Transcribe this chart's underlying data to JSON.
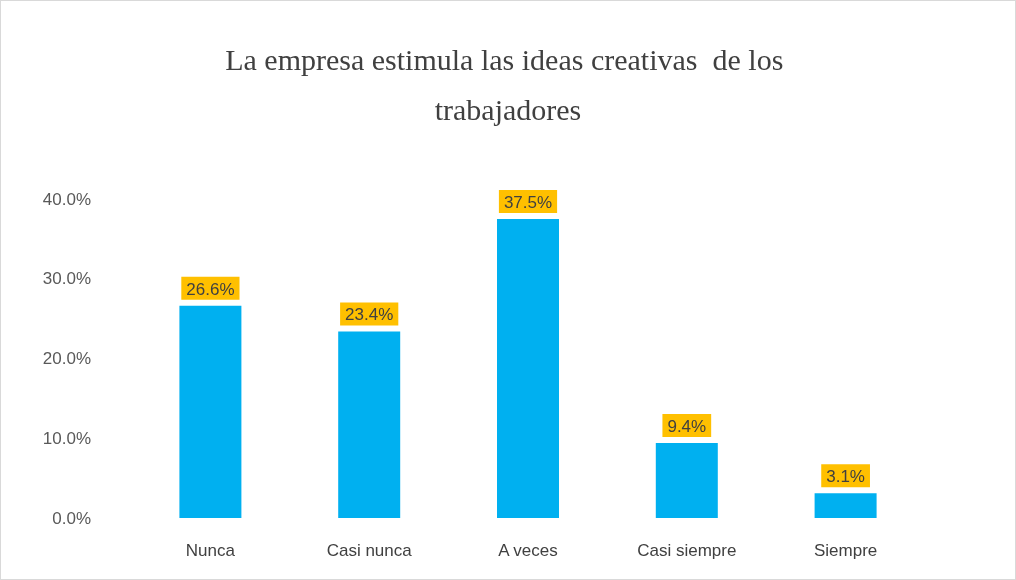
{
  "chart_data": {
    "type": "bar",
    "title": "La empresa estimula las ideas creativas  de los trabajadores",
    "categories": [
      "Nunca",
      "Casi nunca",
      "A veces",
      "Casi siempre",
      "Siempre"
    ],
    "values": [
      26.6,
      23.4,
      37.5,
      9.4,
      3.1
    ],
    "value_labels": [
      "26.6%",
      "23.4%",
      "37.5%",
      "9.4%",
      "3.1%"
    ],
    "color": "#00b0f0",
    "ylim": [
      0,
      40
    ],
    "yticks": [
      {
        "value": 0,
        "label": "0.0%"
      },
      {
        "value": 10,
        "label": "10.0%"
      },
      {
        "value": 20,
        "label": "20.0%"
      },
      {
        "value": 30,
        "label": "30.0%"
      },
      {
        "value": 40,
        "label": "40.0%"
      }
    ],
    "grid": false
  }
}
